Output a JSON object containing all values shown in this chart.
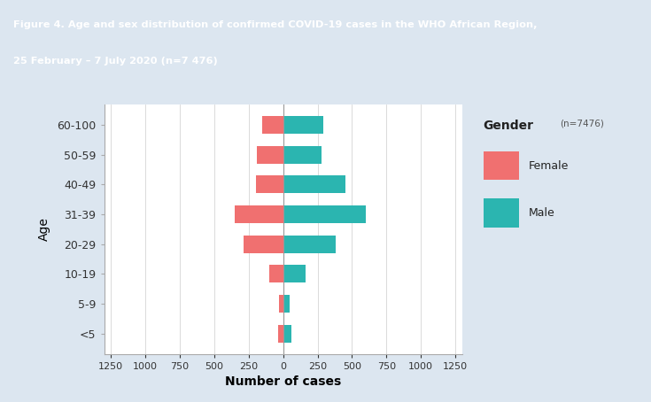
{
  "age_groups": [
    "<5",
    "5-9",
    "10-19",
    "20-29",
    "31-39",
    "40-49",
    "50-59",
    "60-100"
  ],
  "female": [
    35,
    30,
    100,
    290,
    350,
    200,
    190,
    150
  ],
  "male": [
    60,
    50,
    165,
    380,
    600,
    450,
    280,
    290
  ],
  "female_color": "#F07070",
  "male_color": "#2bb5b0",
  "title_line1": "Figure 4. Age and sex distribution of confirmed COVID-19 cases in the WHO African Region,",
  "title_line2": "25 February – 7 July 2020 (n=7 476)",
  "title_color": "#ffffff",
  "header_bg": "#1a69b0",
  "xlabel": "Number of cases",
  "ylabel": "Age",
  "legend_title": "Gender",
  "legend_subtitle": "(n=7476)",
  "xlim": 1300,
  "bg_color": "#dce6f0",
  "plot_bg": "#ffffff"
}
